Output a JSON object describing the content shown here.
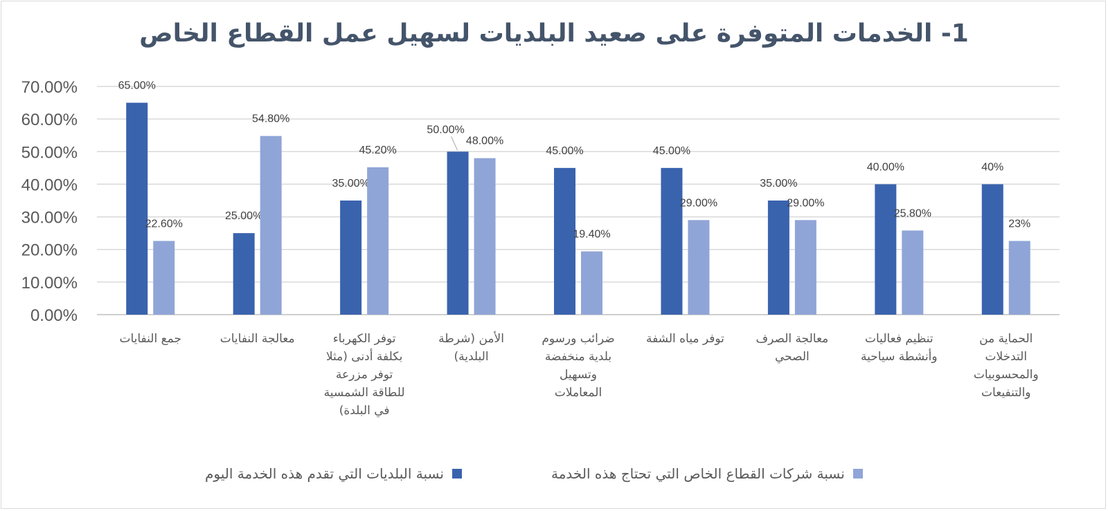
{
  "chart_data": {
    "type": "bar",
    "title": "1- الخدمات المتوفرة على صعيد البلديات لسهيل عمل القطاع الخاص",
    "ylim": [
      0,
      0.7
    ],
    "yticks": [
      "0.00%",
      "10.00%",
      "20.00%",
      "30.00%",
      "40.00%",
      "50.00%",
      "60.00%",
      "70.00%"
    ],
    "grid": true,
    "legend_position": "bottom",
    "categories": [
      [
        "جمع النفايات"
      ],
      [
        "معالجة النفايات"
      ],
      [
        "توفر الكهرباء",
        "بكلفة أدنى (مثلا",
        "توفر مزرعة",
        "للطاقة الشمسية",
        "في البلدة)"
      ],
      [
        "الأمن (شرطة",
        "البلدية)"
      ],
      [
        "ضرائب ورسوم",
        "بلدية منخفضة",
        "وتسهيل",
        "المعاملات"
      ],
      [
        "توفر مياه الشفة"
      ],
      [
        "معالجة الصرف",
        "الصحي"
      ],
      [
        "تنظيم  فعاليات",
        "وأنشطة سياحية"
      ],
      [
        "الحماية من",
        "التدخلات",
        "والمحسوبيات",
        "والتنفيعات"
      ]
    ],
    "series": [
      {
        "name": "نسبة البلديات التي تقدم هذه الخدمة اليوم",
        "color": "#3a63ae",
        "values": [
          0.65,
          0.25,
          0.35,
          0.5,
          0.45,
          0.45,
          0.35,
          0.4,
          0.4
        ],
        "labels": [
          "65.00%",
          "25.00%",
          "35.00%",
          "50.00%",
          "45.00%",
          "45.00%",
          "35.00%",
          "40.00%",
          "40%"
        ]
      },
      {
        "name": "نسبة شركات القطاع الخاص التي تحتاج هذه الخدمة",
        "color": "#90a5d7",
        "values": [
          0.226,
          0.548,
          0.452,
          0.48,
          0.194,
          0.29,
          0.29,
          0.258,
          0.226
        ],
        "labels": [
          "22.60%",
          "54.80%",
          "45.20%",
          "48.00%",
          "19.40%",
          "29.00%",
          "29.00%",
          "25.80%",
          "23%"
        ]
      }
    ]
  }
}
